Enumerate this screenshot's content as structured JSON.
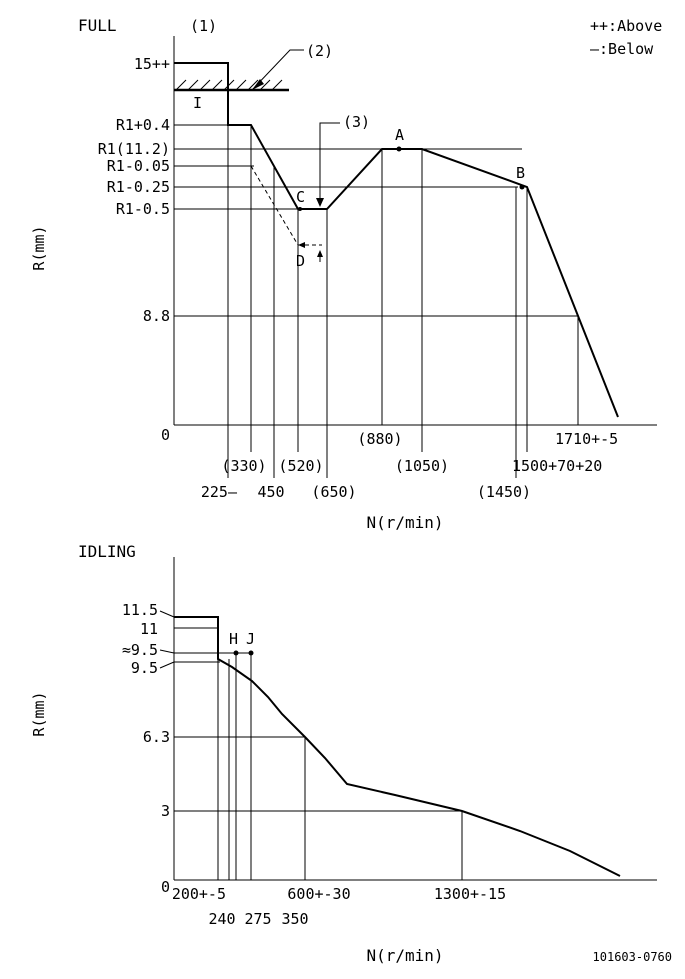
{
  "top": {
    "title": "FULL",
    "legend": {
      "above": "++:Above",
      "below": "—:Below"
    },
    "notes": {
      "n1": "(1)",
      "n2": "(2)",
      "n3": "(3)"
    },
    "ylabel": "R(mm)",
    "xlabel": "N(r/min)",
    "y_ticks": [
      "15++",
      "R1+0.4",
      "R1(11.2)",
      "R1-0.05",
      "R1-0.25",
      "R1-0.5",
      "8.8",
      "0"
    ],
    "x_ticks": [
      "225—",
      "(330)",
      "450",
      "(520)",
      "(650)",
      "(880)",
      "(1050)",
      "(1450)",
      "1500+70+20",
      "1710+-5"
    ],
    "points": {
      "A": "A",
      "B": "B",
      "C": "C",
      "D": "D",
      "I": "I"
    }
  },
  "bottom": {
    "title": "IDLING",
    "ylabel": "R(mm)",
    "xlabel": "N(r/min)",
    "y_ticks": [
      "11.5",
      "11",
      "≈9.5",
      "9.5",
      "6.3",
      "3",
      "0"
    ],
    "x_ticks": [
      "200+-5",
      "240",
      "275",
      "350",
      "600+-30",
      "1300+-15"
    ],
    "points": {
      "H": "H",
      "J": "J"
    }
  },
  "drawing_no": "101603-0760"
}
